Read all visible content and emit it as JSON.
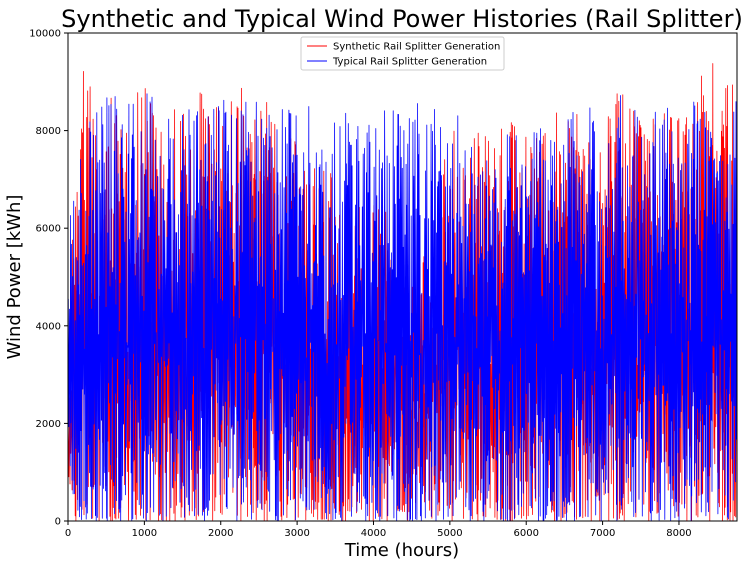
{
  "chart_data": {
    "type": "line",
    "title": "Synthetic and Typical Wind Power Histories (Rail Splitter)",
    "xlabel": "Time (hours)",
    "ylabel": "Wind Power [kWh]",
    "xlim": [
      0,
      8760
    ],
    "ylim": [
      0,
      10000
    ],
    "xticks": [
      0,
      1000,
      2000,
      3000,
      4000,
      5000,
      6000,
      7000,
      8000
    ],
    "yticks": [
      0,
      2000,
      4000,
      6000,
      8000,
      10000
    ],
    "grid": false,
    "legend_position": "top-center",
    "x_step_hours": 200,
    "series": [
      {
        "name": "Synthetic Rail Splitter Generation",
        "color": "#ff0000",
        "values": [
          4300,
          9500,
          8800,
          9200,
          9000,
          9300,
          8700,
          8600,
          8400,
          9100,
          8500,
          9300,
          8200,
          8600,
          7800,
          8000,
          7500,
          7200,
          7000,
          6600,
          6900,
          6500,
          6000,
          5200,
          6200,
          8100,
          7700,
          8100,
          8000,
          8200,
          8300,
          8400,
          8700,
          8600,
          8200,
          8000,
          8900,
          8600,
          8400,
          8600,
          8800,
          9200,
          9500,
          9100
        ]
      },
      {
        "name": "Typical Rail Splitter Generation",
        "color": "#0000ff",
        "values": [
          6800,
          8600,
          8600,
          8800,
          8600,
          8900,
          8600,
          8500,
          8700,
          8600,
          8800,
          8600,
          8700,
          8600,
          8600,
          8500,
          8600,
          8000,
          8500,
          8300,
          8400,
          8500,
          8600,
          8600,
          8600,
          8400,
          8300,
          7500,
          8100,
          7900,
          8600,
          8100,
          8000,
          8400,
          8600,
          8300,
          8800,
          8500,
          8400,
          8600,
          8400,
          8700,
          8400,
          8600
        ]
      }
    ]
  }
}
